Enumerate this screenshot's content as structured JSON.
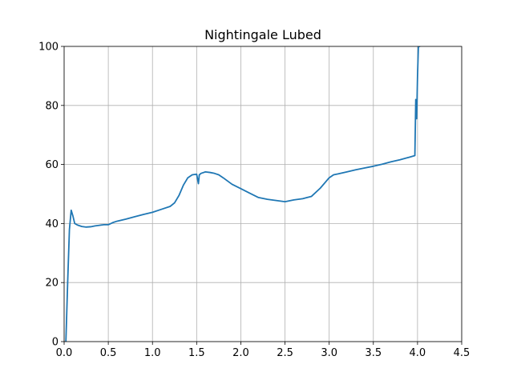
{
  "chart_data": {
    "type": "line",
    "title": "Nightingale Lubed",
    "xlabel": "",
    "ylabel": "",
    "xlim": [
      0,
      4.5
    ],
    "ylim": [
      0,
      100
    ],
    "xticks": [
      0,
      0.5,
      1,
      1.5,
      2,
      2.5,
      3,
      3.5,
      4,
      4.5
    ],
    "xtick_labels": [
      "0.0",
      "0.5",
      "1.0",
      "1.5",
      "2.0",
      "2.5",
      "3.0",
      "3.5",
      "4.0",
      "4.5"
    ],
    "yticks": [
      0,
      20,
      40,
      60,
      80,
      100
    ],
    "ytick_labels": [
      "0",
      "20",
      "40",
      "60",
      "80",
      "100"
    ],
    "grid": true,
    "series": [
      {
        "color": "#1f77b4",
        "x": [
          0.02,
          0.04,
          0.06,
          0.08,
          0.09,
          0.1,
          0.12,
          0.15,
          0.2,
          0.25,
          0.3,
          0.35,
          0.4,
          0.45,
          0.5,
          0.55,
          0.6,
          0.7,
          0.8,
          0.9,
          1.0,
          1.1,
          1.2,
          1.25,
          1.3,
          1.35,
          1.4,
          1.45,
          1.5,
          1.52,
          1.53,
          1.55,
          1.6,
          1.65,
          1.7,
          1.75,
          1.8,
          1.9,
          2.0,
          2.1,
          2.2,
          2.3,
          2.4,
          2.5,
          2.6,
          2.7,
          2.8,
          2.9,
          3.0,
          3.05,
          3.1,
          3.2,
          3.3,
          3.4,
          3.5,
          3.6,
          3.7,
          3.8,
          3.9,
          3.97,
          3.98,
          3.99,
          4.0,
          4.01,
          4.02,
          4.03
        ],
        "y": [
          0,
          20,
          38,
          44.5,
          43.5,
          42.5,
          40,
          39.5,
          39,
          38.8,
          38.9,
          39.2,
          39.4,
          39.6,
          39.6,
          40.3,
          40.8,
          41.5,
          42.3,
          43.1,
          43.8,
          44.8,
          45.8,
          47,
          49.5,
          53,
          55.5,
          56.5,
          56.7,
          53.5,
          56.5,
          57,
          57.5,
          57.3,
          57,
          56.5,
          55.5,
          53.3,
          51.8,
          50.3,
          48.8,
          48.2,
          47.8,
          47.4,
          48,
          48.4,
          49.2,
          52,
          55.5,
          56.5,
          56.8,
          57.5,
          58.2,
          58.8,
          59.4,
          60.1,
          60.9,
          61.6,
          62.4,
          63,
          82,
          75.5,
          90,
          100,
          100,
          100
        ]
      }
    ]
  }
}
